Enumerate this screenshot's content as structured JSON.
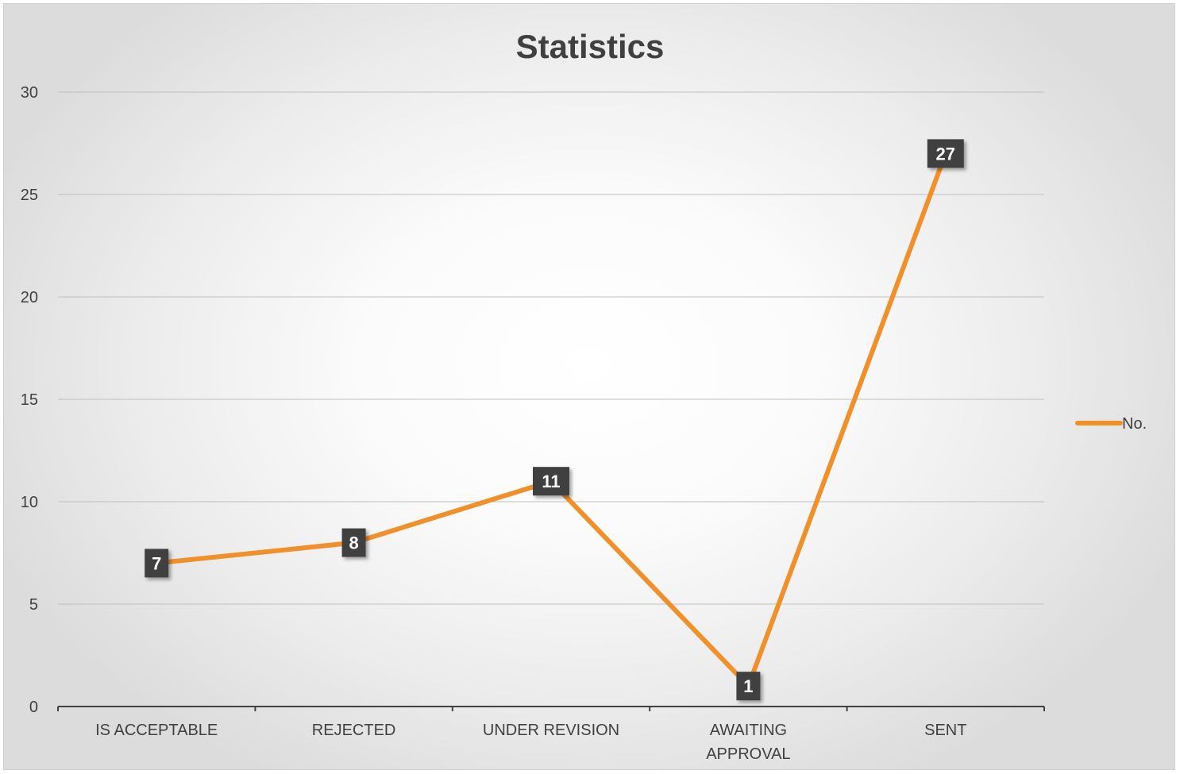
{
  "chart_data": {
    "type": "line",
    "title": "Statistics",
    "xlabel": "",
    "ylabel": "",
    "categories": [
      "IS ACCEPTABLE",
      "REJECTED",
      "UNDER REVISION",
      "AWAITING APPROVAL",
      "SENT"
    ],
    "category_lines": [
      [
        "IS ACCEPTABLE"
      ],
      [
        "REJECTED"
      ],
      [
        "UNDER REVISION"
      ],
      [
        "AWAITING",
        "APPROVAL"
      ],
      [
        "SENT"
      ]
    ],
    "series": [
      {
        "name": "No.",
        "values": [
          7,
          8,
          11,
          1,
          27
        ],
        "color": "#F0902A"
      }
    ],
    "ylim": [
      0,
      30
    ],
    "yticks": [
      0,
      5,
      10,
      15,
      20,
      25,
      30
    ],
    "grid": true,
    "data_labels": true,
    "legend": {
      "position": "right",
      "entries": [
        "No."
      ]
    },
    "colors": {
      "line": "#F0902A",
      "label_box": "#404040",
      "label_text": "#FFFFFF",
      "gridline": "#BFBFBF",
      "axis": "#404040",
      "text": "#404040"
    }
  }
}
